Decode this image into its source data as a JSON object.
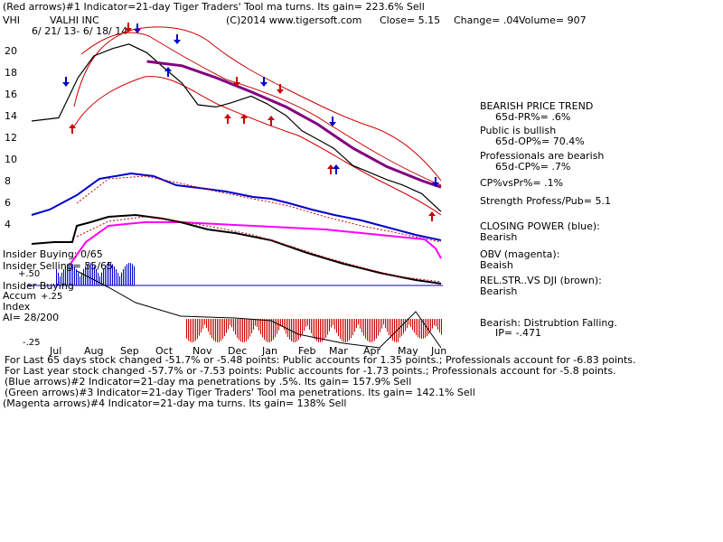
{
  "header": {
    "line1": "(Red arrows)#1 Indicator=21-day Tiger Traders' Tool ma turns.  Its gain= 223.6% Sell",
    "ticker": "VHI",
    "company": "VALHI INC",
    "copyright": "(C)2014 www.tigersoft.com",
    "close": "Close=  5.15",
    "change": "Change= .04",
    "volume": "Volume= 907",
    "date_range": "6/ 21/ 13-  6/ 18/ 14"
  },
  "chart_data": {
    "type": "line",
    "x_ticks": [
      "Jul",
      "Aug",
      "Sep",
      "Oct",
      "Nov",
      "Dec",
      "Jan",
      "Feb",
      "Mar",
      "Apr",
      "May",
      "Jun"
    ],
    "y_ticks": [
      "20",
      "18",
      "16",
      "14",
      "12",
      "10",
      "8",
      "6",
      "4"
    ],
    "ylim": [
      4,
      21
    ],
    "price_series": {
      "name": "Price",
      "color": "#000000",
      "x": [
        "6/21/13",
        "7/15/13",
        "8/1/13",
        "8/15/13",
        "9/1/13",
        "9/15/13",
        "10/1/13",
        "10/15/13",
        "11/1/13",
        "11/15/13",
        "12/1/13",
        "12/15/13",
        "1/1/14",
        "1/15/14",
        "2/1/14",
        "2/15/14",
        "3/1/14",
        "3/15/14",
        "4/1/14",
        "4/15/14",
        "5/1/14",
        "5/15/14",
        "6/1/14",
        "6/18/14"
      ],
      "y": [
        13.5,
        13.8,
        17.5,
        19.5,
        20.2,
        20.6,
        19.8,
        18.5,
        17.0,
        15.0,
        14.8,
        15.2,
        15.8,
        15.1,
        14.0,
        12.6,
        11.8,
        11.0,
        9.4,
        8.8,
        8.1,
        7.6,
        6.8,
        5.15
      ]
    },
    "ma_series": {
      "name": "",
      "color": "#800080",
      "x": [
        "10/1/13",
        "11/1/13",
        "12/1/13",
        "1/1/14",
        "2/1/14",
        "3/1/14",
        "4/1/14",
        "5/1/14",
        "6/1/14",
        "6/18/14"
      ],
      "y": [
        19.0,
        18.6,
        17.5,
        16.2,
        14.8,
        13.2,
        11.0,
        9.3,
        8.0,
        7.4
      ]
    },
    "right_panel": [
      {
        "heading": "BEARISH PRICE TREND",
        "value": "65d-PR%= .6%"
      },
      {
        "heading": "Public is bullish",
        "value": "65d-OP%= 70.4%"
      },
      {
        "heading": "Professionals are bearish",
        "value": "65d-CP%= .7%"
      },
      {
        "heading": "CP%vsPr%=  .1%",
        "value": ""
      },
      {
        "heading": "Strength Profess/Pub= 5.1",
        "value": ""
      },
      {
        "heading": "CLOSING POWER (blue):",
        "value": "Bearish"
      },
      {
        "heading": "OBV (magenta):",
        "value": "Beaish"
      },
      {
        "heading": "REL.STR..VS DJI (brown):",
        "value": "Bearish"
      },
      {
        "heading": "Bearish: Distrubtion Falling.",
        "value": "IP= -.471"
      }
    ],
    "lower_labels": {
      "insider_buying": "Insider Buying: 0/65",
      "insider_selling": "Insider Selling= 55/65",
      "plus50": "+.50",
      "ib_line": "Insider Buying",
      "accum": "Accum",
      "plus25": "+.25",
      "index": "Index",
      "ai": "AI= 28/200",
      "minus25": "-.25"
    },
    "colors": {
      "price": "#000000",
      "upper_band": "#cc0000",
      "purple_ma": "#800080",
      "closing_power": "#0000cc",
      "obv": "#ff00ff",
      "rel_str": "#000000",
      "up_arrow": "#cc0000",
      "down_arrow": "#0000cc",
      "accum_pos": "#0000cc",
      "accum_neg": "#cc0000"
    }
  },
  "footer": [
    "For Last 65 days stock changed -51.7% or -5.48 points:  Public accounts for  1.35 points.;  Professionals account for -6.83 points.",
    "For Last year stock changed -57.7% or -7.53 points:  Public accounts for -1.73 points.;  Professionals account for -5.8 points.",
    "(Blue arrows)#2 Indicator=21-day ma penetrations by .5%.  Its gain= 157.9% Sell",
    "(Green arrows)#3 Indicator=21-day Tiger Traders' Tool ma penetrations.  Its gain= 142.1% Sell",
    "(Magenta arrows)#4 Indicator=21-day ma turns.  Its gain= 138% Sell"
  ]
}
